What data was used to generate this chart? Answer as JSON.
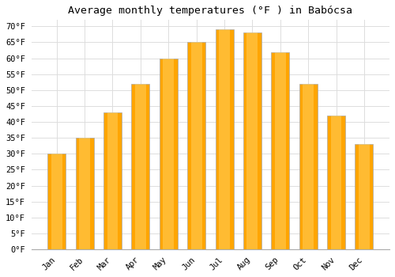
{
  "title": "Average monthly temperatures (°F ) in Babócsa",
  "months": [
    "Jan",
    "Feb",
    "Mar",
    "Apr",
    "May",
    "Jun",
    "Jul",
    "Aug",
    "Sep",
    "Oct",
    "Nov",
    "Dec"
  ],
  "values": [
    30,
    35,
    43,
    52,
    60,
    65,
    69,
    68,
    62,
    52,
    42,
    33
  ],
  "bar_color": "#FFA500",
  "bar_edge_color": "#AAAAAA",
  "background_color": "#FFFFFF",
  "grid_color": "#DDDDDD",
  "ylim": [
    0,
    72
  ],
  "yticks": [
    0,
    5,
    10,
    15,
    20,
    25,
    30,
    35,
    40,
    45,
    50,
    55,
    60,
    65,
    70
  ],
  "title_fontsize": 9.5,
  "tick_fontsize": 7.5,
  "font_family": "monospace"
}
